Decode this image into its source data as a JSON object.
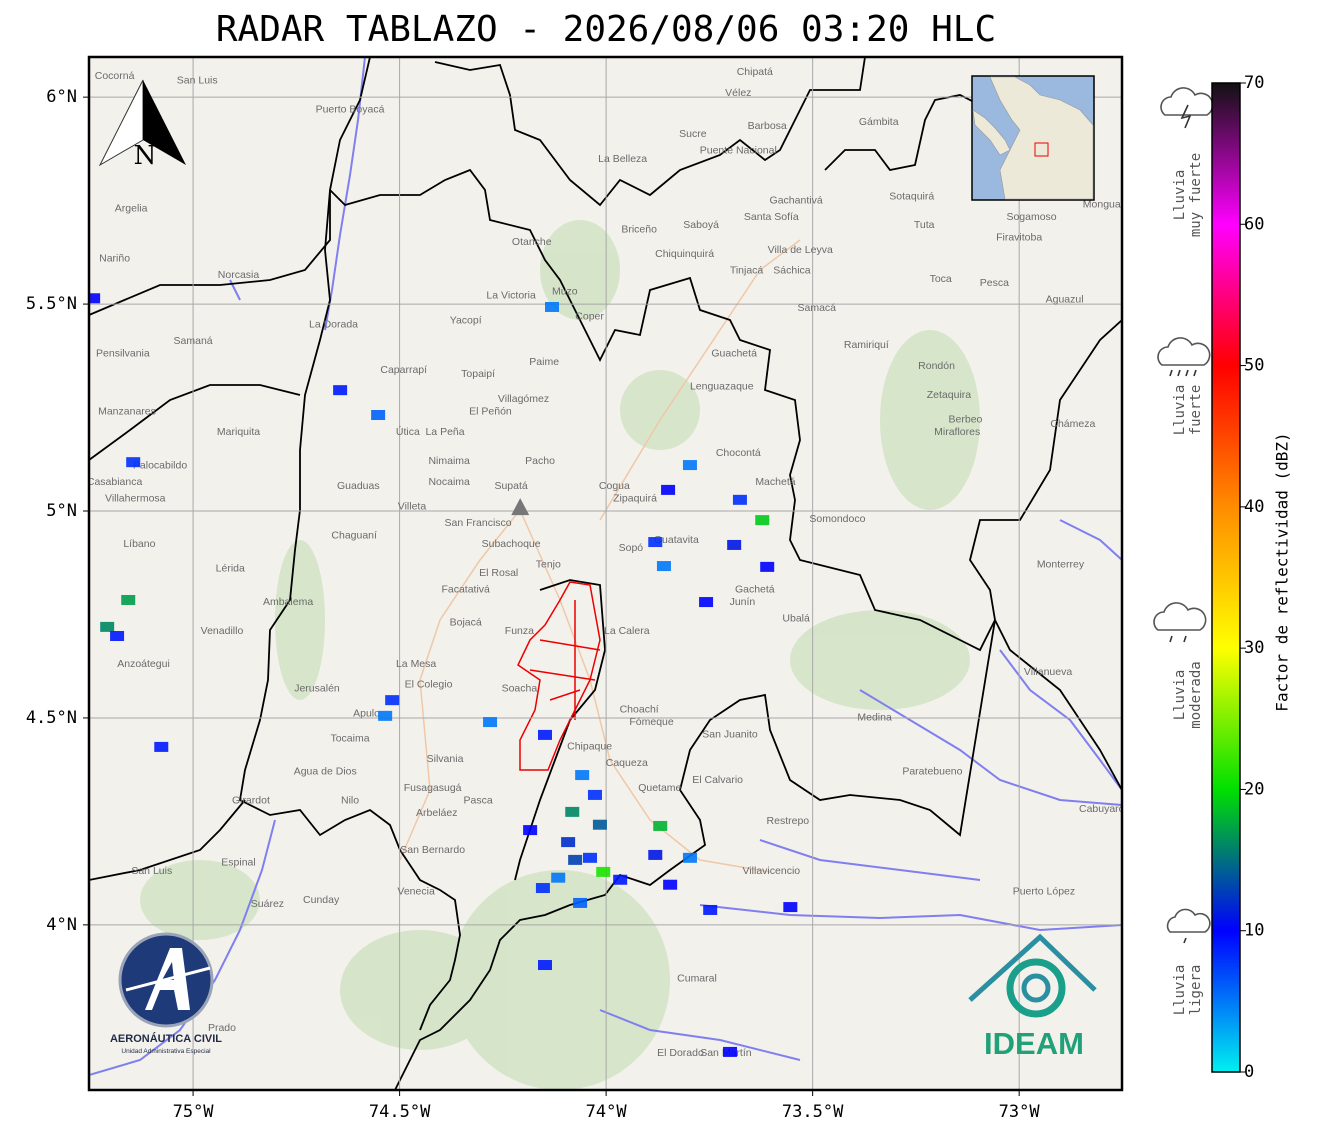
{
  "title": "RADAR TABLAZO - 2026/08/06 03:20 HLC",
  "map": {
    "lon_range": [
      -75.252,
      -72.751
    ],
    "lat_range": [
      3.601,
      6.097
    ],
    "lon_ticks": [
      {
        "value": -75,
        "label": "75°W"
      },
      {
        "value": -74.5,
        "label": "74.5°W"
      },
      {
        "value": -74,
        "label": "74°W"
      },
      {
        "value": -73.5,
        "label": "73.5°W"
      },
      {
        "value": -73,
        "label": "73°W"
      }
    ],
    "lat_ticks": [
      {
        "value": 6,
        "label": "6°N"
      },
      {
        "value": 5.5,
        "label": "5.5°N"
      },
      {
        "value": 5,
        "label": "5°N"
      },
      {
        "value": 4.5,
        "label": "4.5°N"
      },
      {
        "value": 4,
        "label": "4°N"
      }
    ],
    "radar_site": {
      "lon": -74.208,
      "lat": 5.007
    },
    "places": [
      {
        "name": "Villavicencio",
        "lon": -73.6,
        "lat": 4.13
      },
      {
        "name": "Sogamoso",
        "lon": -72.97,
        "lat": 5.71
      },
      {
        "name": "Villa de Leyva",
        "lon": -73.53,
        "lat": 5.63
      },
      {
        "name": "Zipaquirá",
        "lon": -73.93,
        "lat": 5.03
      },
      {
        "name": "Tinjacá",
        "lon": -73.66,
        "lat": 5.58
      },
      {
        "name": "Fusagasugá",
        "lon": -74.42,
        "lat": 4.33
      },
      {
        "name": "Girardot",
        "lon": -74.86,
        "lat": 4.3
      },
      {
        "name": "Chaguaní",
        "lon": -74.61,
        "lat": 4.94
      },
      {
        "name": "Guaduas",
        "lon": -74.6,
        "lat": 5.06
      },
      {
        "name": "La Mesa",
        "lon": -74.46,
        "lat": 4.63
      },
      {
        "name": "Facatativá",
        "lon": -74.34,
        "lat": 4.81
      },
      {
        "name": "Soacha",
        "lon": -74.21,
        "lat": 4.57
      },
      {
        "name": "Chipaque",
        "lon": -74.04,
        "lat": 4.43
      },
      {
        "name": "Choachí",
        "lon": -73.92,
        "lat": 4.52
      },
      {
        "name": "Gachetá",
        "lon": -73.64,
        "lat": 4.81
      },
      {
        "name": "Ubalá",
        "lon": -73.54,
        "lat": 4.74
      },
      {
        "name": "Medina",
        "lon": -73.35,
        "lat": 4.5
      },
      {
        "name": "Restrepo",
        "lon": -73.56,
        "lat": 4.25
      },
      {
        "name": "Cumaral",
        "lon": -73.78,
        "lat": 3.87
      },
      {
        "name": "Puerto López",
        "lon": -72.94,
        "lat": 4.08
      },
      {
        "name": "Pacho",
        "lon": -74.16,
        "lat": 5.12
      },
      {
        "name": "Nimaima",
        "lon": -74.38,
        "lat": 5.12
      },
      {
        "name": "Villeta",
        "lon": -74.47,
        "lat": 5.01
      },
      {
        "name": "La Peña",
        "lon": -74.39,
        "lat": 5.19
      },
      {
        "name": "Útica",
        "lon": -74.48,
        "lat": 5.19
      },
      {
        "name": "Muzo",
        "lon": -74.1,
        "lat": 5.53
      },
      {
        "name": "Coper",
        "lon": -74.04,
        "lat": 5.47
      },
      {
        "name": "Paime",
        "lon": -74.15,
        "lat": 5.36
      },
      {
        "name": "Yacopí",
        "lon": -74.34,
        "lat": 5.46
      },
      {
        "name": "Topaipí",
        "lon": -74.31,
        "lat": 5.33
      },
      {
        "name": "Guatavita",
        "lon": -73.83,
        "lat": 4.93
      },
      {
        "name": "Chocontá",
        "lon": -73.68,
        "lat": 5.14
      },
      {
        "name": "Machetá",
        "lon": -73.59,
        "lat": 5.07
      },
      {
        "name": "Lenguazaque",
        "lon": -73.72,
        "lat": 5.3
      },
      {
        "name": "Guachetá",
        "lon": -73.69,
        "lat": 5.38
      },
      {
        "name": "Chiquinquirá",
        "lon": -73.81,
        "lat": 5.62
      },
      {
        "name": "Saboyá",
        "lon": -73.77,
        "lat": 5.69
      },
      {
        "name": "Barbosa",
        "lon": -73.61,
        "lat": 5.93
      },
      {
        "name": "Puente Nacional",
        "lon": -73.68,
        "lat": 5.87
      },
      {
        "name": "Sucre",
        "lon": -73.79,
        "lat": 5.91
      },
      {
        "name": "Santa Sofía",
        "lon": -73.6,
        "lat": 5.71
      },
      {
        "name": "Sáchica",
        "lon": -73.55,
        "lat": 5.58
      },
      {
        "name": "Samacá",
        "lon": -73.49,
        "lat": 5.49
      },
      {
        "name": "Ramiriquí",
        "lon": -73.37,
        "lat": 5.4
      },
      {
        "name": "Rondón",
        "lon": -73.2,
        "lat": 5.35
      },
      {
        "name": "Zetaquira",
        "lon": -73.17,
        "lat": 5.28
      },
      {
        "name": "Miraflores",
        "lon": -73.15,
        "lat": 5.19
      },
      {
        "name": "Chámeza",
        "lon": -72.87,
        "lat": 5.21
      },
      {
        "name": "Aguazul",
        "lon": -72.89,
        "lat": 5.51
      },
      {
        "name": "Pesca",
        "lon": -73.06,
        "lat": 5.55
      },
      {
        "name": "Tuta",
        "lon": -73.23,
        "lat": 5.69
      },
      {
        "name": "Firavitoba",
        "lon": -73.0,
        "lat": 5.66
      },
      {
        "name": "Mongua",
        "lon": -72.8,
        "lat": 5.74
      },
      {
        "name": "Sotaquirá",
        "lon": -73.26,
        "lat": 5.76
      },
      {
        "name": "Monterrey",
        "lon": -72.9,
        "lat": 4.87
      },
      {
        "name": "Villanueva",
        "lon": -72.93,
        "lat": 4.61
      },
      {
        "name": "Paratebueno",
        "lon": -73.21,
        "lat": 4.37
      },
      {
        "name": "Cabuyaro",
        "lon": -72.8,
        "lat": 4.28
      },
      {
        "name": "La Dorada",
        "lon": -74.66,
        "lat": 5.45
      },
      {
        "name": "Samaná",
        "lon": -75.0,
        "lat": 5.41
      },
      {
        "name": "Manzanares",
        "lon": -75.16,
        "lat": 5.24
      },
      {
        "name": "Mariquita",
        "lon": -74.89,
        "lat": 5.19
      },
      {
        "name": "Villahermosa",
        "lon": -75.14,
        "lat": 5.03
      },
      {
        "name": "Casabianca",
        "lon": -75.19,
        "lat": 5.07
      },
      {
        "name": "Palocabildo",
        "lon": -75.08,
        "lat": 5.11
      },
      {
        "name": "Líbano",
        "lon": -75.13,
        "lat": 4.92
      },
      {
        "name": "Lérida",
        "lon": -74.91,
        "lat": 4.86
      },
      {
        "name": "Venadillo",
        "lon": -74.93,
        "lat": 4.71
      },
      {
        "name": "Ambalema",
        "lon": -74.77,
        "lat": 4.78
      },
      {
        "name": "Espinal",
        "lon": -74.89,
        "lat": 4.15
      },
      {
        "name": "Nilo",
        "lon": -74.62,
        "lat": 4.3
      },
      {
        "name": "Tocaima",
        "lon": -74.62,
        "lat": 4.45
      },
      {
        "name": "Jerusalén",
        "lon": -74.7,
        "lat": 4.57
      },
      {
        "name": "Apulo",
        "lon": -74.58,
        "lat": 4.51
      },
      {
        "name": "Silvania",
        "lon": -74.39,
        "lat": 4.4
      },
      {
        "name": "Arbeláez",
        "lon": -74.41,
        "lat": 4.27
      },
      {
        "name": "Pasca",
        "lon": -74.31,
        "lat": 4.3
      },
      {
        "name": "San Bernardo",
        "lon": -74.42,
        "lat": 4.18
      },
      {
        "name": "Venecia",
        "lon": -74.46,
        "lat": 4.08
      },
      {
        "name": "Cunday",
        "lon": -74.69,
        "lat": 4.06
      },
      {
        "name": "Agua de Dios",
        "lon": -74.68,
        "lat": 4.37
      },
      {
        "name": "El Colegio",
        "lon": -74.43,
        "lat": 4.58
      },
      {
        "name": "Bojacá",
        "lon": -74.34,
        "lat": 4.73
      },
      {
        "name": "El Rosal",
        "lon": -74.26,
        "lat": 4.85
      },
      {
        "name": "Tenjo",
        "lon": -74.14,
        "lat": 4.87
      },
      {
        "name": "Subachoque",
        "lon": -74.23,
        "lat": 4.92
      },
      {
        "name": "Funza",
        "lon": -74.21,
        "lat": 4.71
      },
      {
        "name": "La Calera",
        "lon": -73.95,
        "lat": 4.71
      },
      {
        "name": "Fómeque",
        "lon": -73.89,
        "lat": 4.49
      },
      {
        "name": "Caqueza",
        "lon": -73.95,
        "lat": 4.39
      },
      {
        "name": "Quetame",
        "lon": -73.87,
        "lat": 4.33
      },
      {
        "name": "El Calvario",
        "lon": -73.73,
        "lat": 4.35
      },
      {
        "name": "San Juanito",
        "lon": -73.7,
        "lat": 4.46
      },
      {
        "name": "Junín",
        "lon": -73.67,
        "lat": 4.78
      },
      {
        "name": "Cogua",
        "lon": -73.98,
        "lat": 5.06
      },
      {
        "name": "Sopó",
        "lon": -73.94,
        "lat": 4.91
      },
      {
        "name": "Supatá",
        "lon": -74.23,
        "lat": 5.06
      },
      {
        "name": "San Francisco",
        "lon": -74.31,
        "lat": 4.97
      },
      {
        "name": "Nocaima",
        "lon": -74.38,
        "lat": 5.07
      },
      {
        "name": "Villagómez",
        "lon": -74.2,
        "lat": 5.27
      },
      {
        "name": "El Peñón",
        "lon": -74.28,
        "lat": 5.24
      },
      {
        "name": "Caparrapí",
        "lon": -74.49,
        "lat": 5.34
      },
      {
        "name": "Puerto Boyacá",
        "lon": -74.62,
        "lat": 5.97
      },
      {
        "name": "San Luis",
        "lon": -74.99,
        "lat": 6.04
      },
      {
        "name": "Cocorná",
        "lon": -75.19,
        "lat": 6.05
      },
      {
        "name": "Argelia",
        "lon": -75.15,
        "lat": 5.73
      },
      {
        "name": "Nariño",
        "lon": -75.19,
        "lat": 5.61
      },
      {
        "name": "Norcasia",
        "lon": -74.89,
        "lat": 5.57
      },
      {
        "name": "Pensilvania",
        "lon": -75.17,
        "lat": 5.38
      },
      {
        "name": "Anzoátegui",
        "lon": -75.12,
        "lat": 4.63
      },
      {
        "name": "Chipatá",
        "lon": -73.64,
        "lat": 6.06
      },
      {
        "name": "Vélez",
        "lon": -73.68,
        "lat": 6.01
      },
      {
        "name": "La Belleza",
        "lon": -73.96,
        "lat": 5.85
      },
      {
        "name": "Otanche",
        "lon": -74.18,
        "lat": 5.65
      },
      {
        "name": "Briceño",
        "lon": -73.92,
        "lat": 5.68
      },
      {
        "name": "La Victoria",
        "lon": -74.23,
        "lat": 5.52
      },
      {
        "name": "Gámbita",
        "lon": -73.34,
        "lat": 5.94
      },
      {
        "name": "Gachantivá",
        "lon": -73.54,
        "lat": 5.75
      },
      {
        "name": "Toca",
        "lon": -73.19,
        "lat": 5.56
      },
      {
        "name": "Somondoco",
        "lon": -73.44,
        "lat": 4.98
      },
      {
        "name": "Berbeo",
        "lon": -73.13,
        "lat": 5.22
      },
      {
        "name": "San Martín",
        "lon": -73.71,
        "lat": 3.69
      },
      {
        "name": "El Dorado",
        "lon": -73.82,
        "lat": 3.69
      },
      {
        "name": "Prado",
        "lon": -74.93,
        "lat": 3.75
      },
      {
        "name": "Suárez",
        "lon": -74.82,
        "lat": 4.05
      },
      {
        "name": "San Luis",
        "lon": -75.1,
        "lat": 4.13
      }
    ],
    "echoes": [
      {
        "lon": -75.145,
        "lat": 5.118,
        "dbz": 8
      },
      {
        "lon": -75.157,
        "lat": 4.785,
        "dbz": 17
      },
      {
        "lon": -75.208,
        "lat": 4.72,
        "dbz": 16
      },
      {
        "lon": -75.184,
        "lat": 4.698,
        "dbz": 9
      },
      {
        "lon": -74.644,
        "lat": 5.292,
        "dbz": 9
      },
      {
        "lon": -74.552,
        "lat": 5.232,
        "dbz": 6
      },
      {
        "lon": -74.518,
        "lat": 4.543,
        "dbz": 8
      },
      {
        "lon": -74.535,
        "lat": 4.505,
        "dbz": 5
      },
      {
        "lon": -75.077,
        "lat": 4.43,
        "dbz": 9
      },
      {
        "lon": -74.148,
        "lat": 4.459,
        "dbz": 9
      },
      {
        "lon": -74.281,
        "lat": 4.49,
        "dbz": 5
      },
      {
        "lon": -74.058,
        "lat": 4.362,
        "dbz": 5
      },
      {
        "lon": -74.027,
        "lat": 4.314,
        "dbz": 8
      },
      {
        "lon": -74.082,
        "lat": 4.273,
        "dbz": 16
      },
      {
        "lon": -74.184,
        "lat": 4.229,
        "dbz": 10
      },
      {
        "lon": -74.092,
        "lat": 4.2,
        "dbz": 12
      },
      {
        "lon": -74.039,
        "lat": 4.162,
        "dbz": 8
      },
      {
        "lon": -74.116,
        "lat": 4.114,
        "dbz": 5
      },
      {
        "lon": -74.007,
        "lat": 4.128,
        "dbz": 21
      },
      {
        "lon": -74.063,
        "lat": 4.053,
        "dbz": 6
      },
      {
        "lon": -74.153,
        "lat": 4.089,
        "dbz": 8
      },
      {
        "lon": -73.881,
        "lat": 4.169,
        "dbz": 11
      },
      {
        "lon": -73.845,
        "lat": 4.097,
        "dbz": 10
      },
      {
        "lon": -73.869,
        "lat": 4.239,
        "dbz": 18
      },
      {
        "lon": -73.797,
        "lat": 4.162,
        "dbz": 5
      },
      {
        "lon": -74.148,
        "lat": 3.903,
        "dbz": 9
      },
      {
        "lon": -73.676,
        "lat": 5.027,
        "dbz": 8
      },
      {
        "lon": -73.622,
        "lat": 4.978,
        "dbz": 19
      },
      {
        "lon": -73.69,
        "lat": 4.918,
        "dbz": 11
      },
      {
        "lon": -73.85,
        "lat": 5.051,
        "dbz": 10
      },
      {
        "lon": -73.797,
        "lat": 5.111,
        "dbz": 5
      },
      {
        "lon": -73.881,
        "lat": 4.925,
        "dbz": 8
      },
      {
        "lon": -73.86,
        "lat": 4.867,
        "dbz": 5
      },
      {
        "lon": -73.758,
        "lat": 4.78,
        "dbz": 10
      },
      {
        "lon": -73.61,
        "lat": 4.865,
        "dbz": 10
      },
      {
        "lon": -73.748,
        "lat": 4.036,
        "dbz": 9
      },
      {
        "lon": -73.554,
        "lat": 4.043,
        "dbz": 10
      },
      {
        "lon": -73.7,
        "lat": 3.693,
        "dbz": 10
      },
      {
        "lon": -74.131,
        "lat": 5.493,
        "dbz": 5
      },
      {
        "lon": -75.242,
        "lat": 5.514,
        "dbz": 10
      },
      {
        "lon": -74.015,
        "lat": 4.242,
        "dbz": 14
      },
      {
        "lon": -74.075,
        "lat": 4.157,
        "dbz": 13
      },
      {
        "lon": -73.966,
        "lat": 4.109,
        "dbz": 9
      }
    ]
  },
  "north_label": "N",
  "colorbar": {
    "label": "Factor de reflectividad (dBZ)",
    "range": [
      0,
      70
    ],
    "ticks": [
      0,
      10,
      20,
      30,
      40,
      50,
      60,
      70
    ],
    "colors": [
      "#00f0f0",
      "#0000ff",
      "#00e000",
      "#ffff00",
      "#ff8c00",
      "#ff0000",
      "#ff00ff",
      "#111111"
    ]
  },
  "rain_classes": [
    [
      "Lluvia",
      "muy fuerte"
    ],
    [
      "Lluvia",
      "fuerte"
    ],
    [
      "Lluvia",
      "moderada"
    ],
    [
      "Lluvia",
      "ligera"
    ]
  ],
  "logos": {
    "aerocivil": "AERONÁUTICA CIVIL",
    "aerocivil_sub": "Unidad Administrativa Especial",
    "ideam": "IDEAM"
  }
}
